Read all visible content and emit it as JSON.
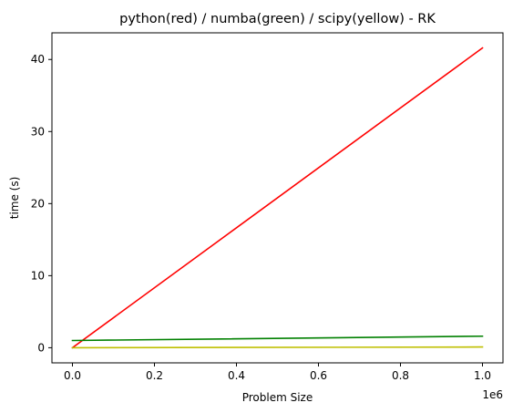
{
  "chart_data": {
    "type": "line",
    "title": "python(red) / numba(green) / scipy(yellow) - RK",
    "xlabel": "Problem Size",
    "ylabel": "time (s)",
    "x_offset_label": "1e6",
    "xlim": [
      -0.05,
      1.05
    ],
    "ylim": [
      -2.1,
      43.7
    ],
    "x_ticks": [
      0.0,
      0.2,
      0.4,
      0.6,
      0.8,
      1.0
    ],
    "x_tick_labels": [
      "0.0",
      "0.2",
      "0.4",
      "0.6",
      "0.8",
      "1.0"
    ],
    "y_ticks": [
      0,
      10,
      20,
      30,
      40
    ],
    "y_tick_labels": [
      "0",
      "10",
      "20",
      "30",
      "40"
    ],
    "grid": false,
    "series": [
      {
        "color": "#ff0000",
        "x": [
          0.0,
          1.0
        ],
        "y": [
          0.0,
          41.6
        ]
      },
      {
        "color": "#008000",
        "x": [
          0.0,
          1.0
        ],
        "y": [
          1.0,
          1.6
        ]
      },
      {
        "color": "#bfbf00",
        "x": [
          0.0,
          1.0
        ],
        "y": [
          0.0,
          0.1
        ]
      }
    ]
  }
}
